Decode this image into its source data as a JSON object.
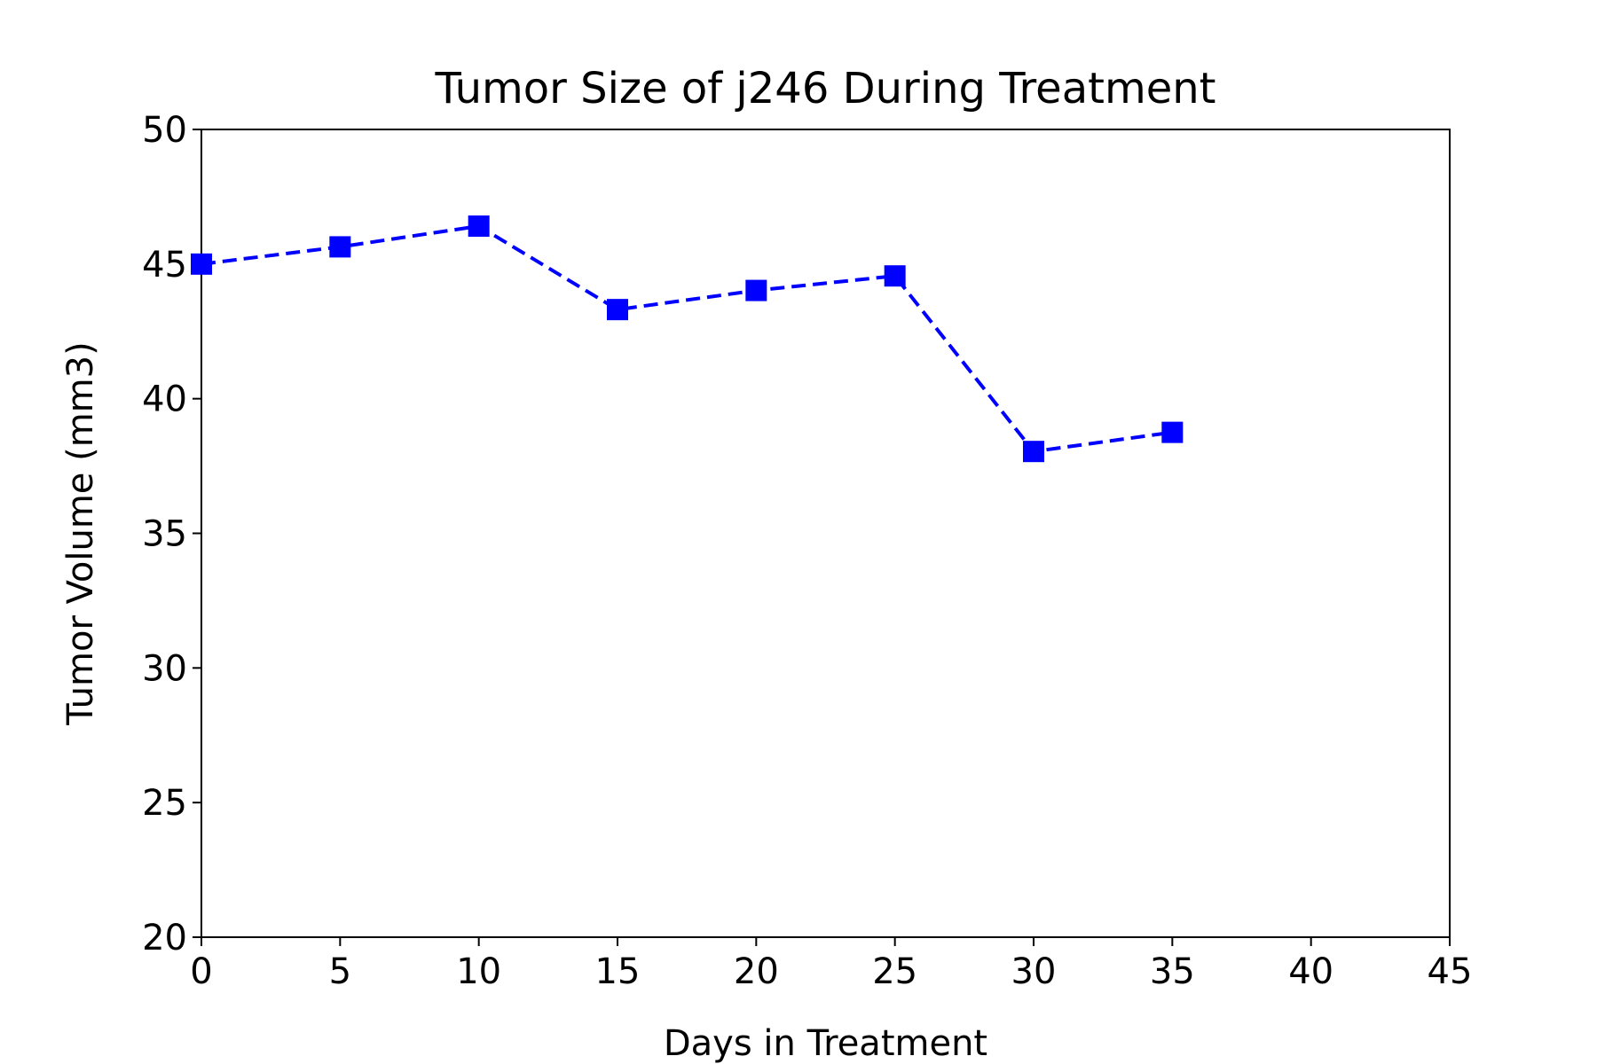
{
  "chart_data": {
    "type": "line",
    "title": "Tumor Size of j246 During Treatment",
    "xlabel": "Days in Treatment",
    "ylabel": "Tumor Volume (mm3)",
    "xlim": [
      0,
      45
    ],
    "ylim": [
      20,
      50
    ],
    "xticks": [
      0,
      5,
      10,
      15,
      20,
      25,
      30,
      35,
      40,
      45
    ],
    "yticks": [
      20,
      25,
      30,
      35,
      40,
      45,
      50
    ],
    "grid": false,
    "legend": "none",
    "series": [
      {
        "color": "#0000ff",
        "line_style": "dashed",
        "marker": "square",
        "x": [
          0,
          5,
          10,
          15,
          20,
          25,
          30,
          35
        ],
        "y": [
          45.0,
          45.64,
          46.41,
          43.31,
          44.02,
          44.56,
          38.04,
          38.75
        ]
      }
    ]
  }
}
